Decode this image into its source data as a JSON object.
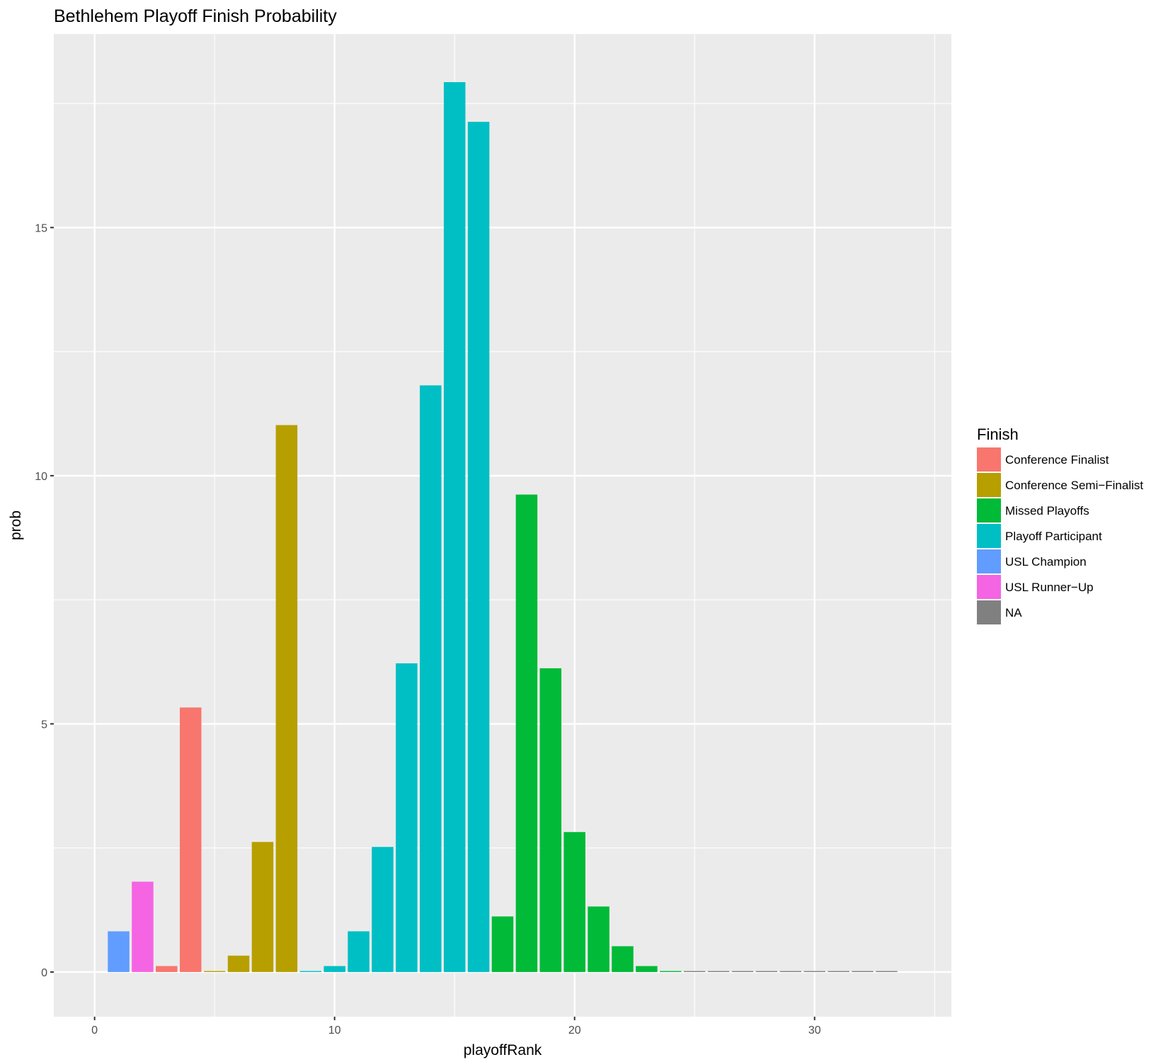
{
  "chart_data": {
    "type": "bar",
    "title": "Bethlehem Playoff Finish Probability",
    "xlabel": "playoffRank",
    "ylabel": "prob",
    "xlim": [
      -1.7,
      35.7
    ],
    "ylim": [
      -0.9,
      18.9
    ],
    "x_ticks": [
      0,
      10,
      20,
      30
    ],
    "x_tick_labels": [
      "0",
      "10",
      "20",
      "30"
    ],
    "y_ticks": [
      0,
      5,
      10,
      15
    ],
    "y_tick_labels": [
      "0",
      "5",
      "10",
      "15"
    ],
    "grid": true,
    "legend": {
      "title": "Finish",
      "position": "right",
      "entries": [
        {
          "label": "Conference Finalist",
          "color": "#F8766D"
        },
        {
          "label": "Conference Semi−Finalist",
          "color": "#B79F00"
        },
        {
          "label": "Missed Playoffs",
          "color": "#00BA38"
        },
        {
          "label": "Playoff Participant",
          "color": "#00BFC4"
        },
        {
          "label": "USL Champion",
          "color": "#619CFF"
        },
        {
          "label": "USL Runner−Up",
          "color": "#F564E3"
        },
        {
          "label": "NA",
          "color": "#808080"
        }
      ]
    },
    "series": [
      {
        "name": "USL Champion",
        "color": "#619CFF",
        "x": [
          1
        ],
        "values": [
          0.82
        ]
      },
      {
        "name": "USL Runner−Up",
        "color": "#F564E3",
        "x": [
          2
        ],
        "values": [
          1.82
        ]
      },
      {
        "name": "Conference Finalist",
        "color": "#F8766D",
        "x": [
          3,
          4
        ],
        "values": [
          0.12,
          5.33
        ]
      },
      {
        "name": "Conference Semi−Finalist",
        "color": "#B79F00",
        "x": [
          5,
          6,
          7,
          8
        ],
        "values": [
          0.02,
          0.33,
          2.62,
          11.02
        ]
      },
      {
        "name": "Playoff Participant",
        "color": "#00BFC4",
        "x": [
          9,
          10,
          11,
          12,
          13,
          14,
          15,
          16
        ],
        "values": [
          0.02,
          0.12,
          0.82,
          2.52,
          6.22,
          11.82,
          17.93,
          17.13
        ]
      },
      {
        "name": "Missed Playoffs",
        "color": "#00BA38",
        "x": [
          17,
          18,
          19,
          20,
          21,
          22,
          23,
          24
        ],
        "values": [
          1.12,
          9.62,
          6.12,
          2.82,
          1.32,
          0.52,
          0.12,
          0.02
        ]
      },
      {
        "name": "NA",
        "color": "#808080",
        "x": [
          25,
          26,
          27,
          28,
          29,
          30,
          31,
          32,
          33
        ],
        "values": [
          0.02,
          0.02,
          0.02,
          0.02,
          0.02,
          0.02,
          0.02,
          0.02,
          0.02
        ]
      }
    ]
  }
}
